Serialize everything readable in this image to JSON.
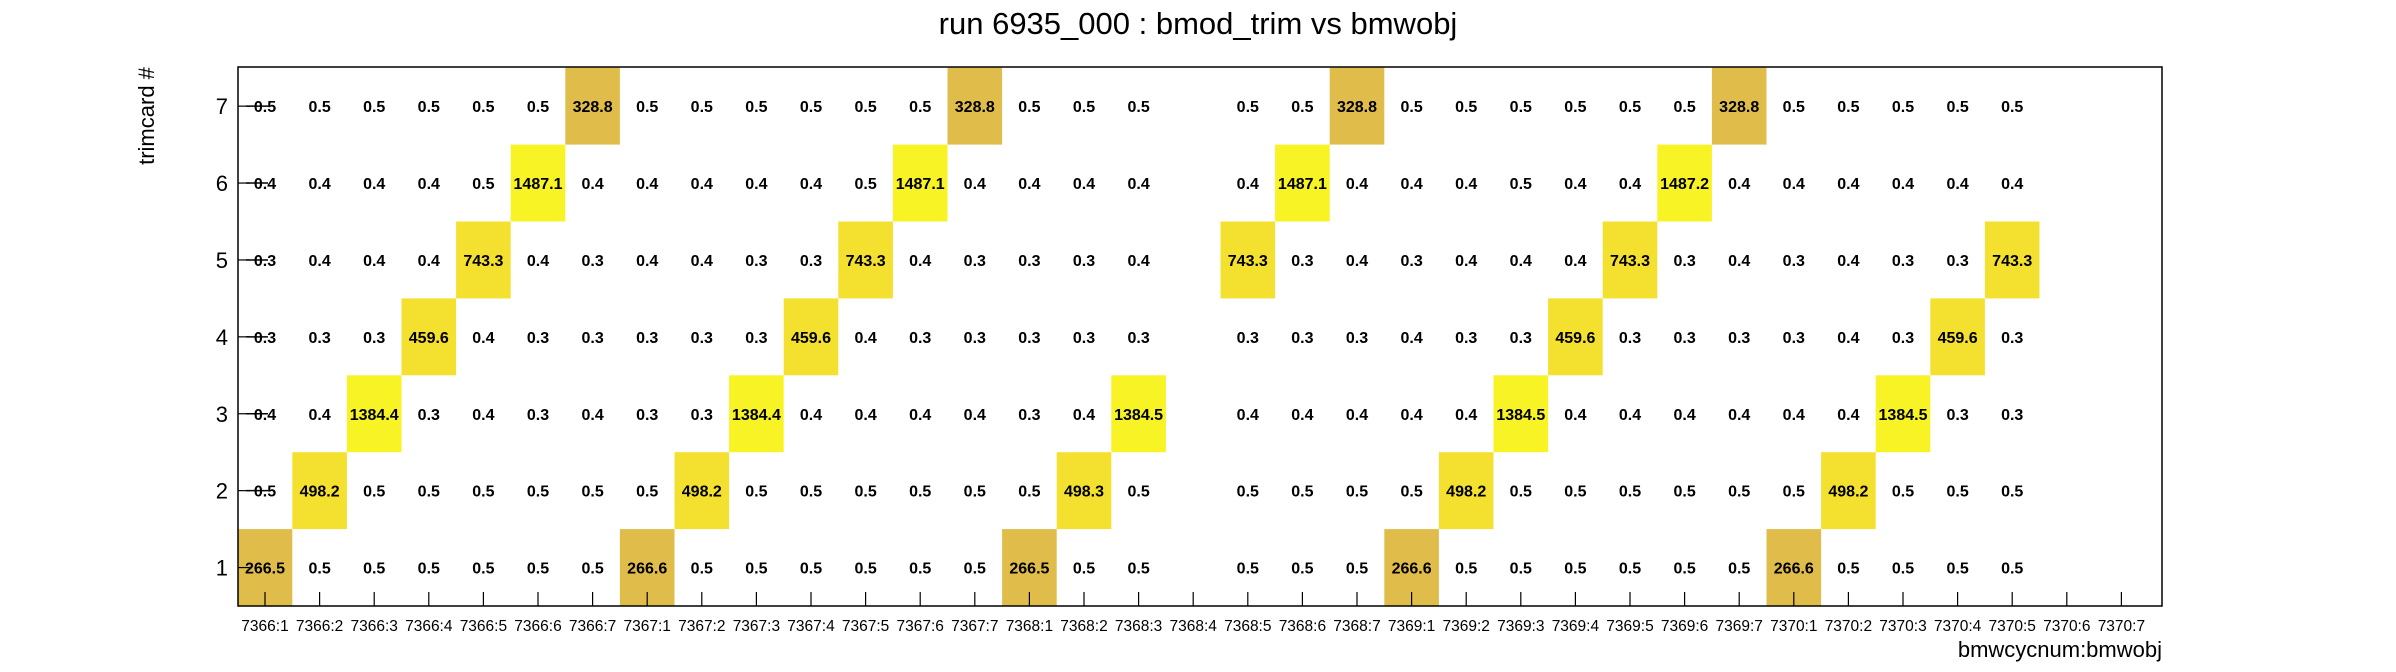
{
  "chart_data": {
    "type": "heatmap",
    "title": "run 6935_000 : bmod_trim vs bmwobj",
    "xlabel": "bmwcycnum:bmwobj",
    "ylabel": "trimcard #",
    "x_categories": [
      "7366:1",
      "7366:2",
      "7366:3",
      "7366:4",
      "7366:5",
      "7366:6",
      "7366:7",
      "7367:1",
      "7367:2",
      "7367:3",
      "7367:4",
      "7367:5",
      "7367:6",
      "7367:7",
      "7368:1",
      "7368:2",
      "7368:3",
      "7368:4",
      "7368:5",
      "7368:6",
      "7368:7",
      "7369:1",
      "7369:2",
      "7369:3",
      "7369:4",
      "7369:5",
      "7369:6",
      "7369:7",
      "7370:1",
      "7370:2",
      "7370:3",
      "7370:4",
      "7370:5",
      "7370:6",
      "7370:7"
    ],
    "y_categories": [
      "1",
      "2",
      "3",
      "4",
      "5",
      "6",
      "7"
    ],
    "cells": [
      {
        "x": "7366:1",
        "values": [
          266.5,
          0.5,
          0.4,
          0.3,
          0.3,
          0.4,
          0.5
        ]
      },
      {
        "x": "7366:2",
        "values": [
          0.5,
          498.2,
          0.4,
          0.3,
          0.4,
          0.4,
          0.5
        ]
      },
      {
        "x": "7366:3",
        "values": [
          0.5,
          0.5,
          1384.4,
          0.3,
          0.4,
          0.4,
          0.5
        ]
      },
      {
        "x": "7366:4",
        "values": [
          0.5,
          0.5,
          0.3,
          459.6,
          0.4,
          0.4,
          0.5
        ]
      },
      {
        "x": "7366:5",
        "values": [
          0.5,
          0.5,
          0.4,
          0.4,
          743.3,
          0.5,
          0.5
        ]
      },
      {
        "x": "7366:6",
        "values": [
          0.5,
          0.5,
          0.3,
          0.3,
          0.4,
          1487.1,
          0.5
        ]
      },
      {
        "x": "7366:7",
        "values": [
          0.5,
          0.5,
          0.4,
          0.3,
          0.3,
          0.4,
          328.8
        ]
      },
      {
        "x": "7367:1",
        "values": [
          266.6,
          0.5,
          0.3,
          0.3,
          0.4,
          0.4,
          0.5
        ]
      },
      {
        "x": "7367:2",
        "values": [
          0.5,
          498.2,
          0.3,
          0.3,
          0.4,
          0.4,
          0.5
        ]
      },
      {
        "x": "7367:3",
        "values": [
          0.5,
          0.5,
          1384.4,
          0.3,
          0.3,
          0.4,
          0.5
        ]
      },
      {
        "x": "7367:4",
        "values": [
          0.5,
          0.5,
          0.4,
          459.6,
          0.3,
          0.4,
          0.5
        ]
      },
      {
        "x": "7367:5",
        "values": [
          0.5,
          0.5,
          0.4,
          0.4,
          743.3,
          0.5,
          0.5
        ]
      },
      {
        "x": "7367:6",
        "values": [
          0.5,
          0.5,
          0.4,
          0.3,
          0.4,
          1487.1,
          0.5
        ]
      },
      {
        "x": "7367:7",
        "values": [
          0.5,
          0.5,
          0.4,
          0.3,
          0.3,
          0.4,
          328.8
        ]
      },
      {
        "x": "7368:1",
        "values": [
          266.5,
          0.5,
          0.3,
          0.3,
          0.3,
          0.4,
          0.5
        ]
      },
      {
        "x": "7368:2",
        "values": [
          0.5,
          498.3,
          0.4,
          0.3,
          0.3,
          0.4,
          0.5
        ]
      },
      {
        "x": "7368:3",
        "values": [
          0.5,
          0.5,
          1384.5,
          0.3,
          0.4,
          0.4,
          0.5
        ]
      },
      {
        "x": "7368:4",
        "values": [
          null,
          null,
          null,
          null,
          null,
          null,
          null
        ]
      },
      {
        "x": "7368:5",
        "values": [
          0.5,
          0.5,
          0.4,
          0.3,
          743.3,
          0.4,
          0.5
        ]
      },
      {
        "x": "7368:6",
        "values": [
          0.5,
          0.5,
          0.4,
          0.3,
          0.3,
          1487.1,
          0.5
        ]
      },
      {
        "x": "7368:7",
        "values": [
          0.5,
          0.5,
          0.4,
          0.3,
          0.4,
          0.4,
          328.8
        ]
      },
      {
        "x": "7369:1",
        "values": [
          266.6,
          0.5,
          0.4,
          0.4,
          0.3,
          0.4,
          0.5
        ]
      },
      {
        "x": "7369:2",
        "values": [
          0.5,
          498.2,
          0.4,
          0.3,
          0.4,
          0.4,
          0.5
        ]
      },
      {
        "x": "7369:3",
        "values": [
          0.5,
          0.5,
          1384.5,
          0.3,
          0.4,
          0.5,
          0.5
        ]
      },
      {
        "x": "7369:4",
        "values": [
          0.5,
          0.5,
          0.4,
          459.6,
          0.4,
          0.4,
          0.5
        ]
      },
      {
        "x": "7369:5",
        "values": [
          0.5,
          0.5,
          0.4,
          0.3,
          743.3,
          0.4,
          0.5
        ]
      },
      {
        "x": "7369:6",
        "values": [
          0.5,
          0.5,
          0.4,
          0.3,
          0.3,
          1487.2,
          0.5
        ]
      },
      {
        "x": "7369:7",
        "values": [
          0.5,
          0.5,
          0.4,
          0.3,
          0.4,
          0.4,
          328.8
        ]
      },
      {
        "x": "7370:1",
        "values": [
          266.6,
          0.5,
          0.4,
          0.3,
          0.3,
          0.4,
          0.5
        ]
      },
      {
        "x": "7370:2",
        "values": [
          0.5,
          498.2,
          0.4,
          0.4,
          0.4,
          0.4,
          0.5
        ]
      },
      {
        "x": "7370:3",
        "values": [
          0.5,
          0.5,
          1384.5,
          0.3,
          0.3,
          0.4,
          0.5
        ]
      },
      {
        "x": "7370:4",
        "values": [
          0.5,
          0.5,
          0.3,
          459.6,
          0.3,
          0.4,
          0.5
        ]
      },
      {
        "x": "7370:5",
        "values": [
          0.5,
          0.5,
          0.3,
          0.3,
          743.3,
          0.4,
          0.5
        ]
      },
      {
        "x": "7370:6",
        "values": [
          null,
          null,
          null,
          null,
          null,
          null,
          null
        ]
      },
      {
        "x": "7370:7",
        "values": [
          null,
          null,
          null,
          null,
          null,
          null,
          null
        ]
      }
    ],
    "colors": {
      "high": "#f7f325",
      "mid": "#f4e02f",
      "low": "#e0bd4a",
      "frame": "#000000",
      "small_value_marker": "#000000"
    },
    "grid": false,
    "legend": "none"
  }
}
